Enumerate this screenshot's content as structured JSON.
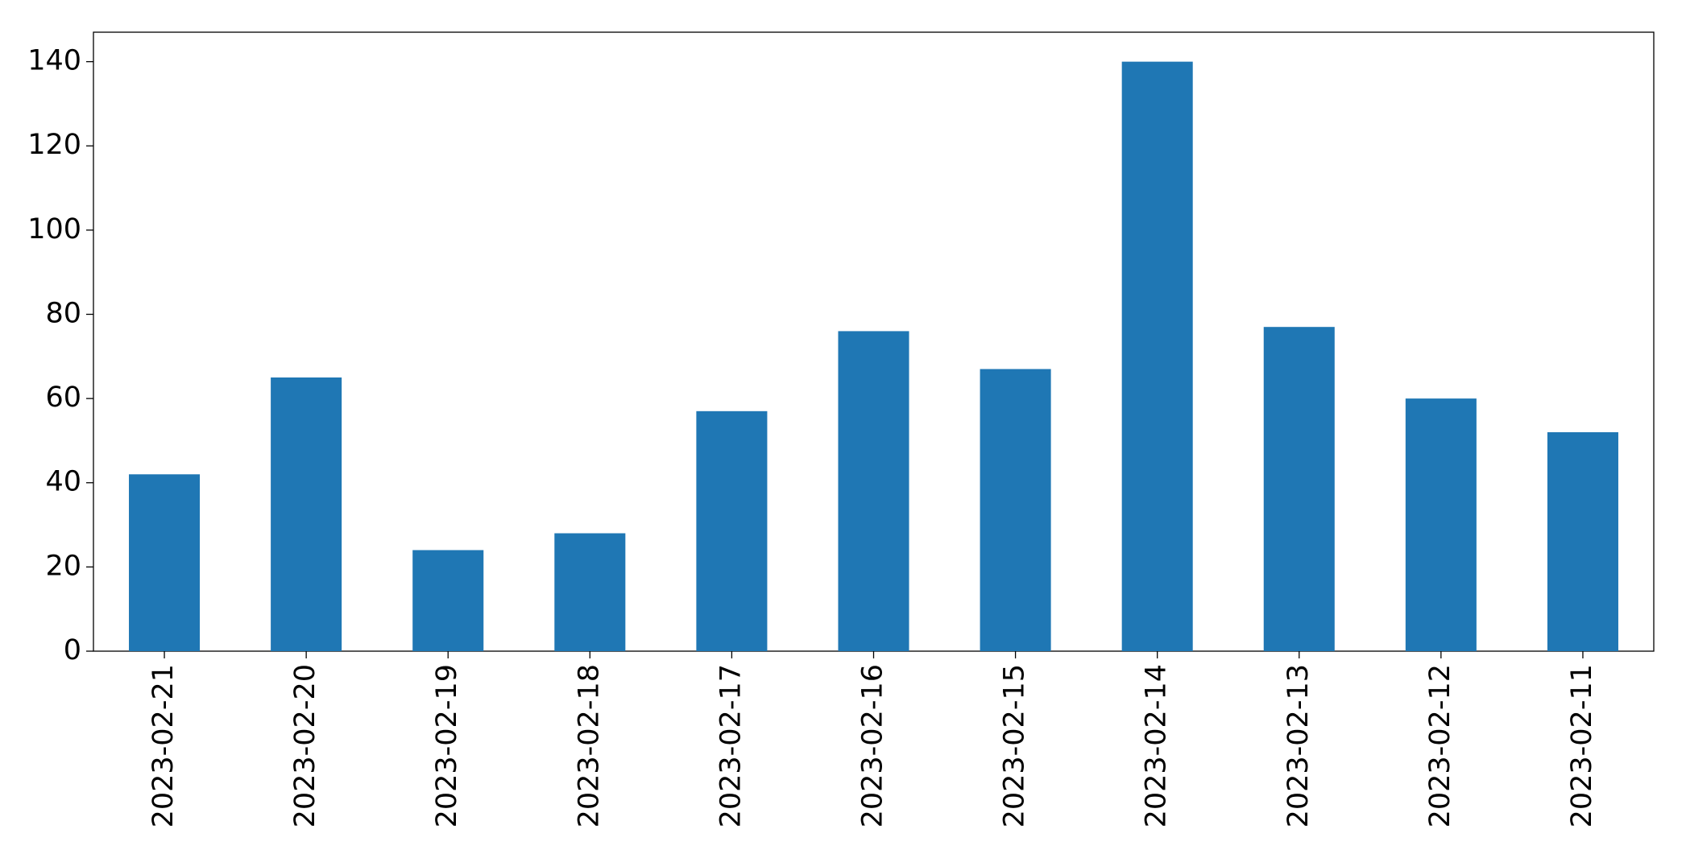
{
  "chart_data": {
    "type": "bar",
    "categories": [
      "2023-02-21",
      "2023-02-20",
      "2023-02-19",
      "2023-02-18",
      "2023-02-17",
      "2023-02-16",
      "2023-02-15",
      "2023-02-14",
      "2023-02-13",
      "2023-02-12",
      "2023-02-11"
    ],
    "values": [
      42,
      65,
      24,
      28,
      57,
      76,
      67,
      140,
      77,
      60,
      52
    ],
    "color": "#1f77b4",
    "ylim": [
      0,
      147
    ],
    "yticks": [
      0,
      20,
      40,
      60,
      80,
      100,
      120,
      140
    ],
    "grid": false
  }
}
